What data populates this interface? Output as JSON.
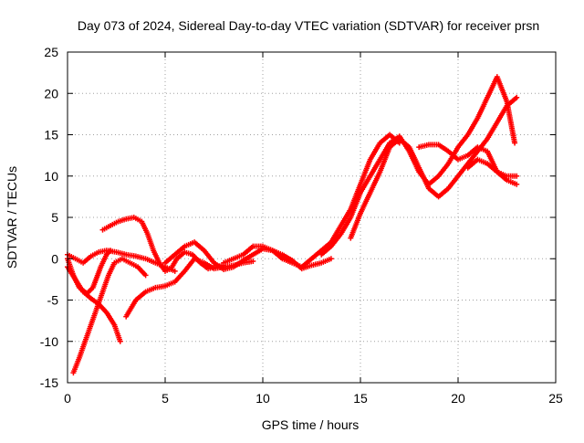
{
  "chart_data": {
    "type": "scatter",
    "title": "Day 073 of 2024, Sidereal Day-to-day VTEC variation (SDTVAR) for receiver prsn",
    "xlabel": "GPS time / hours",
    "ylabel": "SDTVAR / TECUs",
    "xlim": [
      0,
      25
    ],
    "ylim": [
      -15,
      25
    ],
    "x_ticks": [
      0,
      5,
      10,
      15,
      20,
      25
    ],
    "y_ticks": [
      -15,
      -10,
      -5,
      0,
      5,
      10,
      15,
      20,
      25
    ],
    "grid": true,
    "marker": "+",
    "color": "#ff0000",
    "series": [
      {
        "x": [
          0.0,
          0.3,
          0.6,
          1.0,
          1.3,
          1.7,
          2.0,
          2.2
        ],
        "y": [
          0.0,
          -2.0,
          -3.5,
          -4.2,
          -3.5,
          -1.0,
          0.5,
          1.0
        ]
      },
      {
        "x": [
          0.0,
          0.4,
          0.8,
          1.2,
          1.6,
          2.0,
          2.4,
          2.7
        ],
        "y": [
          -1.0,
          -2.5,
          -4.0,
          -4.8,
          -5.5,
          -6.5,
          -8.0,
          -10.0
        ]
      },
      {
        "x": [
          0.0,
          0.4,
          0.8,
          1.2,
          1.6,
          2.0,
          2.5,
          3.0,
          3.5,
          4.0,
          4.5,
          5.0,
          5.5
        ],
        "y": [
          0.5,
          0.0,
          -0.5,
          0.3,
          0.8,
          1.0,
          0.8,
          0.5,
          0.3,
          0.0,
          -0.5,
          -1.0,
          -1.5
        ]
      },
      {
        "x": [
          0.3,
          0.6,
          0.9,
          1.2,
          1.5,
          1.8,
          2.1,
          2.4,
          2.8,
          3.2,
          3.6,
          4.0
        ],
        "y": [
          -13.8,
          -12.0,
          -10.0,
          -8.0,
          -6.0,
          -4.0,
          -2.0,
          -0.5,
          0.0,
          -0.5,
          -1.0,
          -2.0
        ]
      },
      {
        "x": [
          1.8,
          2.2,
          2.6,
          3.0,
          3.4,
          3.8,
          4.1,
          4.4,
          4.7,
          5.0,
          5.3,
          5.6,
          6.0,
          6.4,
          6.8,
          7.2,
          7.6,
          8.0
        ],
        "y": [
          3.5,
          4.0,
          4.5,
          4.8,
          5.0,
          4.5,
          3.0,
          1.0,
          -0.5,
          -1.5,
          -1.2,
          0.0,
          0.8,
          0.5,
          -0.5,
          -1.2,
          -1.0,
          -0.8
        ]
      },
      {
        "x": [
          3.0,
          3.5,
          4.0,
          4.5,
          5.0,
          5.5,
          6.0,
          6.5,
          7.0,
          7.5,
          8.0,
          8.5,
          9.0,
          9.5
        ],
        "y": [
          -7.0,
          -5.0,
          -4.0,
          -3.5,
          -3.3,
          -2.8,
          -1.5,
          0.0,
          -0.5,
          -1.2,
          -1.0,
          -0.8,
          -0.5,
          -0.3
        ]
      },
      {
        "x": [
          5.0,
          5.5,
          6.0,
          6.5,
          7.0,
          7.5,
          8.0,
          8.5,
          9.0,
          9.5,
          10.0,
          10.5,
          11.0,
          11.5,
          12.0,
          12.5,
          13.0,
          13.5
        ],
        "y": [
          -0.5,
          0.5,
          1.5,
          2.0,
          1.0,
          -0.5,
          -1.3,
          -1.0,
          -0.2,
          0.5,
          1.2,
          1.0,
          0.5,
          -0.2,
          -1.2,
          -0.8,
          -0.5,
          0.0
        ]
      },
      {
        "x": [
          8.0,
          8.5,
          9.0,
          9.5,
          10.0,
          10.5,
          11.0,
          11.5,
          12.0,
          12.5,
          13.0,
          13.5,
          14.0,
          14.5,
          15.0,
          15.5,
          16.0,
          16.5,
          17.0
        ],
        "y": [
          -0.5,
          0.0,
          0.5,
          1.5,
          1.5,
          1.0,
          0.0,
          -0.5,
          -1.0,
          0.0,
          1.0,
          2.0,
          4.0,
          6.0,
          9.0,
          12.0,
          14.0,
          15.0,
          14.0
        ]
      },
      {
        "x": [
          13.0,
          13.5,
          14.0,
          14.5,
          15.0,
          15.5,
          16.0,
          16.5,
          17.0,
          17.5,
          18.0,
          18.5,
          19.0,
          19.5,
          20.0,
          20.5,
          21.0,
          21.5,
          22.0,
          22.5,
          22.9
        ],
        "y": [
          0.5,
          1.5,
          3.0,
          5.0,
          8.0,
          10.0,
          12.0,
          14.0,
          14.8,
          13.0,
          10.5,
          9.0,
          10.0,
          11.5,
          13.5,
          15.0,
          17.0,
          19.5,
          22.0,
          19.0,
          14.0
        ]
      },
      {
        "x": [
          14.5,
          15.0,
          15.5,
          16.0,
          16.5,
          17.0,
          17.5,
          18.0,
          18.5,
          19.0,
          19.5,
          20.0,
          20.5,
          21.0,
          21.5,
          22.0,
          22.5,
          23.0
        ],
        "y": [
          2.5,
          5.5,
          8.0,
          10.5,
          13.5,
          14.5,
          13.5,
          11.0,
          8.5,
          7.5,
          8.5,
          10.0,
          11.5,
          13.0,
          14.5,
          16.5,
          18.5,
          19.5
        ]
      },
      {
        "x": [
          18.0,
          18.5,
          19.0,
          19.5,
          20.0,
          20.5,
          21.0,
          21.5,
          22.0,
          22.5,
          23.0
        ],
        "y": [
          13.5,
          13.8,
          13.8,
          13.0,
          12.0,
          12.5,
          13.5,
          13.0,
          10.5,
          9.5,
          9.0
        ]
      },
      {
        "x": [
          20.5,
          21.0,
          21.5,
          22.0,
          22.5,
          23.0
        ],
        "y": [
          11.0,
          12.0,
          11.5,
          10.5,
          10.0,
          10.0
        ]
      }
    ]
  }
}
